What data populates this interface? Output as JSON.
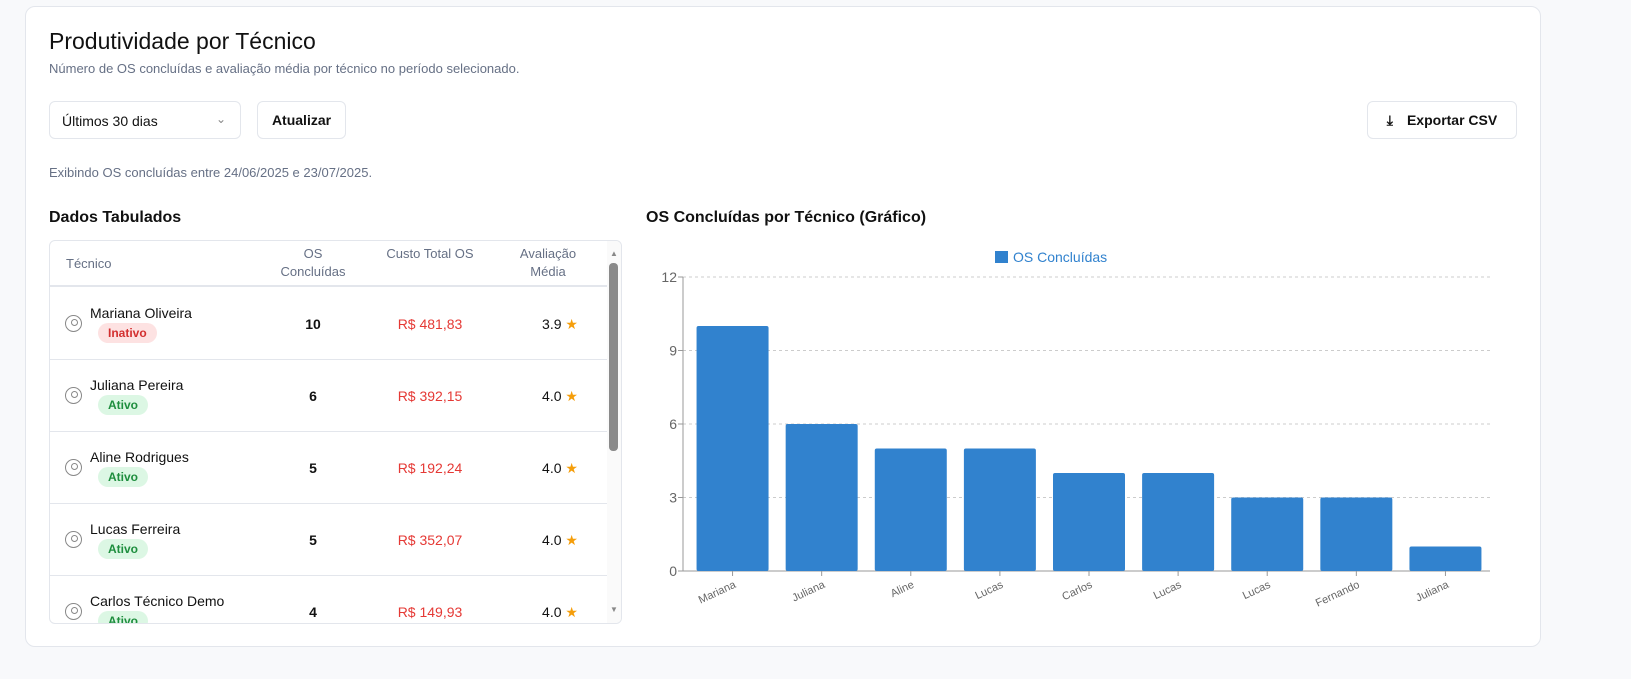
{
  "header": {
    "title": "Produtividade por Técnico",
    "subtitle": "Número de OS concluídas e avaliação média por técnico no período selecionado."
  },
  "controls": {
    "period": "Últimos 30 dias",
    "refresh": "Atualizar",
    "export": "Exportar CSV"
  },
  "info": "Exibindo OS concluídas entre 24/06/2025 e 23/07/2025.",
  "table": {
    "title": "Dados Tabulados",
    "headers": [
      "Técnico",
      "OS Concluídas",
      "Custo Total OS",
      "Avaliação Média"
    ],
    "rows": [
      {
        "name": "Mariana Oliveira",
        "status": "Inativo",
        "os": "10",
        "custo": "R$ 481,83",
        "aval": "3.9"
      },
      {
        "name": "Juliana Pereira",
        "status": "Ativo",
        "os": "6",
        "custo": "R$ 392,15",
        "aval": "4.0"
      },
      {
        "name": "Aline Rodrigues",
        "status": "Ativo",
        "os": "5",
        "custo": "R$ 192,24",
        "aval": "4.0"
      },
      {
        "name": "Lucas Ferreira",
        "status": "Ativo",
        "os": "5",
        "custo": "R$ 352,07",
        "aval": "4.0"
      },
      {
        "name": "Carlos Técnico Demo",
        "status": "Ativo",
        "os": "4",
        "custo": "R$ 149,93",
        "aval": "4.0"
      }
    ]
  },
  "chart_title": "OS Concluídas por Técnico (Gráfico)",
  "chart_data": {
    "type": "bar",
    "categories": [
      "Mariana",
      "Juliana",
      "Aline",
      "Lucas",
      "Carlos",
      "Lucas",
      "Lucas",
      "Fernando",
      "Juliana"
    ],
    "series": [
      {
        "name": "OS Concluídas",
        "values": [
          10,
          6,
          5,
          5,
          4,
          4,
          3,
          3,
          1
        ]
      }
    ],
    "ylim": [
      0,
      12
    ],
    "yticks": [
      0,
      3,
      6,
      9,
      12
    ],
    "grid": true,
    "legend": "top",
    "color": "#3182ce"
  }
}
